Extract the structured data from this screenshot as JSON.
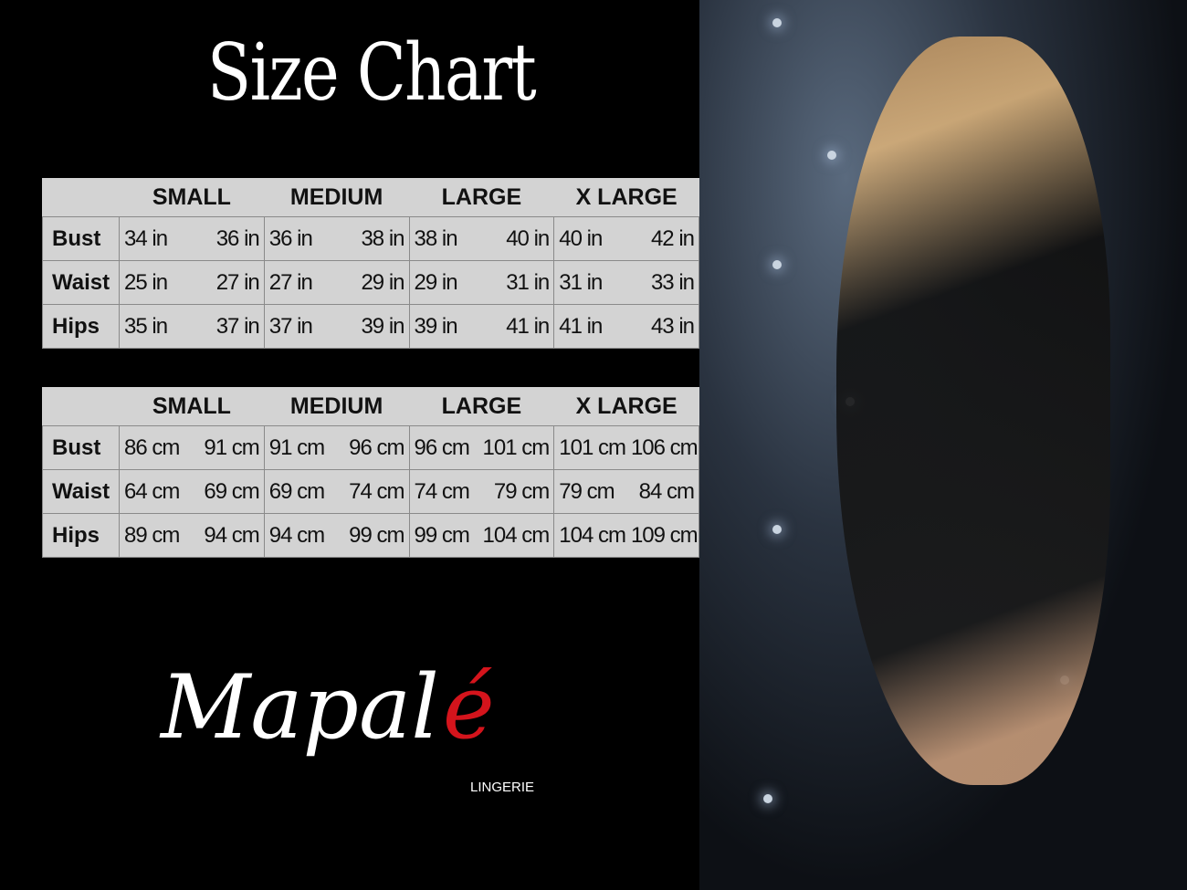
{
  "title": "Size Chart",
  "sizes": [
    "SMALL",
    "MEDIUM",
    "LARGE",
    "X LARGE"
  ],
  "imperial": {
    "rows": [
      {
        "label": "Bust",
        "values": [
          [
            "34 in",
            "36 in"
          ],
          [
            "36 in",
            "38 in"
          ],
          [
            "38 in",
            "40 in"
          ],
          [
            "40 in",
            "42 in"
          ]
        ]
      },
      {
        "label": "Waist",
        "values": [
          [
            "25 in",
            "27 in"
          ],
          [
            "27 in",
            "29 in"
          ],
          [
            "29 in",
            "31 in"
          ],
          [
            "31 in",
            "33 in"
          ]
        ]
      },
      {
        "label": "Hips",
        "values": [
          [
            "35 in",
            "37 in"
          ],
          [
            "37 in",
            "39 in"
          ],
          [
            "39 in",
            "41 in"
          ],
          [
            "41 in",
            "43 in"
          ]
        ]
      }
    ]
  },
  "metric": {
    "rows": [
      {
        "label": "Bust",
        "values": [
          [
            "86 cm",
            "91 cm"
          ],
          [
            "91 cm",
            "96 cm"
          ],
          [
            "96 cm",
            "101 cm"
          ],
          [
            "101 cm",
            "106 cm"
          ]
        ]
      },
      {
        "label": "Waist",
        "values": [
          [
            "64 cm",
            "69 cm"
          ],
          [
            "69 cm",
            "74 cm"
          ],
          [
            "74 cm",
            "79 cm"
          ],
          [
            "79 cm",
            "84 cm"
          ]
        ]
      },
      {
        "label": "Hips",
        "values": [
          [
            "89 cm",
            "94 cm"
          ],
          [
            "94 cm",
            "99 cm"
          ],
          [
            "99 cm",
            "104 cm"
          ],
          [
            "104 cm",
            "109 cm"
          ]
        ]
      }
    ]
  },
  "logo": {
    "name_main": "Mapal",
    "name_accent": "é",
    "subtitle": "LINGERIE"
  },
  "colors": {
    "background": "#000000",
    "table": "#d3d3d3",
    "accent": "#d4141c"
  }
}
